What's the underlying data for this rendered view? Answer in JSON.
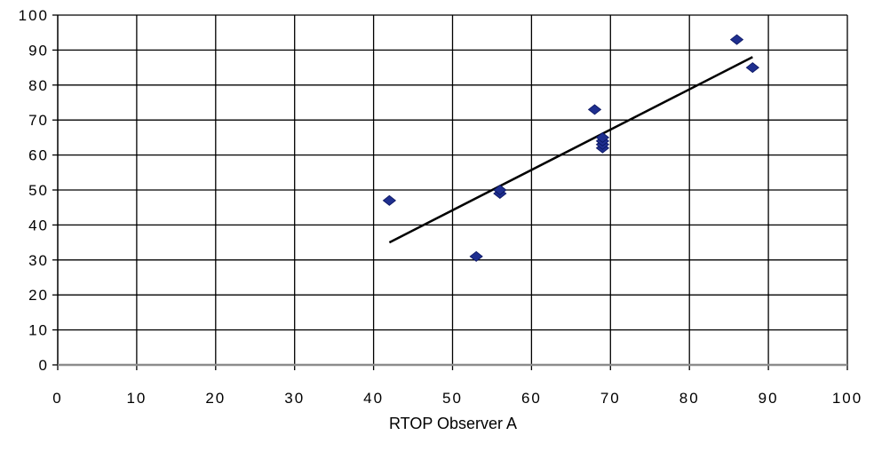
{
  "chart_data": {
    "type": "scatter",
    "title": "",
    "xlabel": "RTOP Observer A",
    "ylabel": "",
    "xlim": [
      0,
      100
    ],
    "ylim": [
      0,
      100
    ],
    "x_ticks": [
      "0",
      "10",
      "20",
      "30",
      "40",
      "50",
      "60",
      "70",
      "80",
      "90",
      "100"
    ],
    "y_ticks": [
      "0",
      "10",
      "20",
      "30",
      "40",
      "50",
      "60",
      "70",
      "80",
      "90",
      "100"
    ],
    "grid": true,
    "legend": "none",
    "marker_color": "#1f2f8f",
    "series": [
      {
        "points": [
          {
            "x": 42,
            "y": 47
          },
          {
            "x": 53,
            "y": 31
          },
          {
            "x": 56,
            "y": 49
          },
          {
            "x": 56,
            "y": 50
          },
          {
            "x": 68,
            "y": 73
          },
          {
            "x": 69,
            "y": 62
          },
          {
            "x": 69,
            "y": 63
          },
          {
            "x": 69,
            "y": 64
          },
          {
            "x": 69,
            "y": 65
          },
          {
            "x": 86,
            "y": 93
          },
          {
            "x": 88,
            "y": 85
          }
        ]
      }
    ],
    "trendline": {
      "x": [
        42,
        88
      ],
      "y": [
        35,
        88
      ]
    }
  }
}
